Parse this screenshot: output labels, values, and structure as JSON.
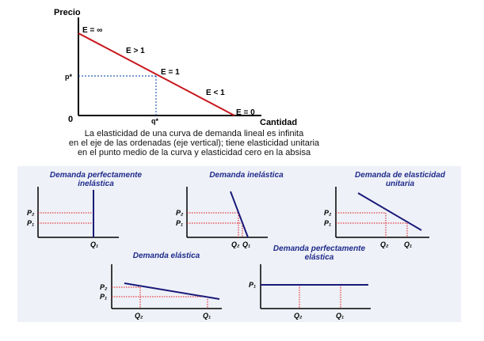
{
  "main_chart": {
    "y_axis_label": "Precio",
    "x_axis_label": "Cantidad",
    "origin_label": "0",
    "p_label": "p*",
    "q_label": "q*",
    "annotations": [
      "E = ∞",
      "E > 1",
      "E = 1",
      "E < 1",
      "E = 0"
    ],
    "caption_lines": [
      "La elasticidad de una curva de demanda lineal es infinita",
      "en el eje de las ordenadas (eje vertical); tiene elasticidad unitaria",
      "en el punto medio de la curva y elasticidad cero en la absisa"
    ],
    "line_color": "#c8171e",
    "guide_color": "#2a5fb0"
  },
  "small_charts": [
    {
      "title": [
        "Demanda perfectamente",
        "inelástica"
      ],
      "y_labels": [
        "P₂",
        "P₁"
      ],
      "x_labels": [
        "Q₁"
      ]
    },
    {
      "title": [
        "Demanda inelástica"
      ],
      "y_labels": [
        "P₂",
        "P₁"
      ],
      "x_labels": [
        "Q₂",
        "Q₁"
      ]
    },
    {
      "title": [
        "Demanda de elasticidad",
        "unitaria"
      ],
      "y_labels": [
        "P₂",
        "P₁"
      ],
      "x_labels": [
        "Q₂",
        "Q₁"
      ]
    },
    {
      "title": [
        "Demanda elástica"
      ],
      "y_labels": [
        "P₂",
        "P₁"
      ],
      "x_labels": [
        "Q₂",
        "Q₁"
      ]
    },
    {
      "title": [
        "Demanda perfectamente",
        "elástica"
      ],
      "y_labels": [
        "P₁"
      ],
      "x_labels": [
        "Q₂",
        "Q₁"
      ]
    }
  ],
  "colors": {
    "curve": "#1a1a7a",
    "dotted": "#e0101a",
    "title": "#1e2a8c"
  }
}
